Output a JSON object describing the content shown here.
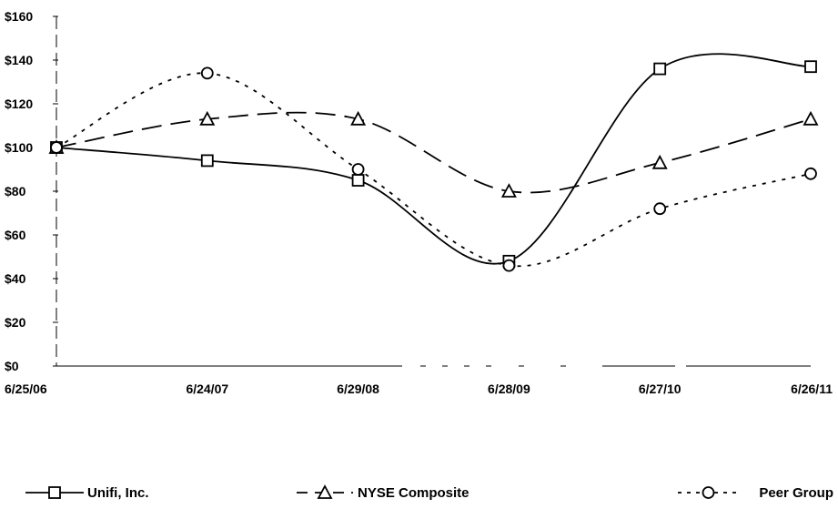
{
  "chart_data": {
    "type": "line",
    "title": "",
    "xlabel": "",
    "ylabel": "",
    "categories": [
      "6/25/06",
      "6/24/07",
      "6/29/08",
      "6/28/09",
      "6/27/10",
      "6/26/11"
    ],
    "ylim": [
      0,
      160
    ],
    "yticks": [
      0,
      20,
      40,
      60,
      80,
      100,
      120,
      140,
      160
    ],
    "ytick_labels": [
      "$0",
      "$20",
      "$40",
      "$60",
      "$80",
      "$100",
      "$120",
      "$140",
      "$160"
    ],
    "grid": false,
    "legend_position": "bottom",
    "series": [
      {
        "name": "Unifi, Inc.",
        "values": [
          100,
          94,
          85,
          48,
          136,
          137
        ],
        "marker": "square",
        "dash": "solid",
        "color": "#000000"
      },
      {
        "name": "NYSE Composite",
        "values": [
          100,
          113,
          113,
          80,
          93,
          113
        ],
        "marker": "triangle",
        "dash": "long-dash",
        "color": "#000000"
      },
      {
        "name": "Peer Group",
        "values": [
          100,
          134,
          90,
          46,
          72,
          88
        ],
        "marker": "circle",
        "dash": "dotted",
        "color": "#000000"
      }
    ]
  }
}
